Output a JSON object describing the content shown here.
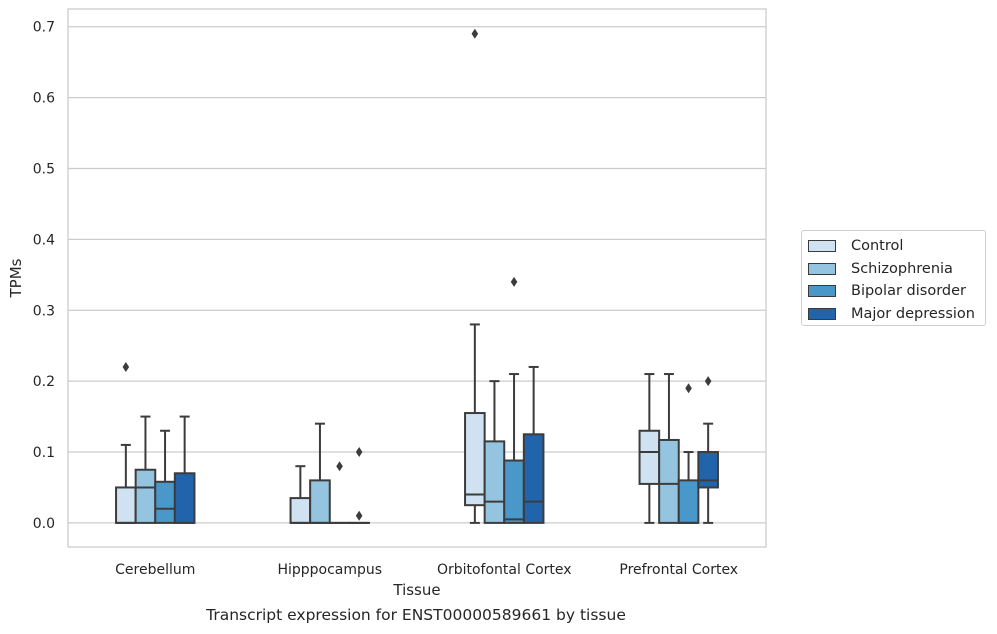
{
  "caption": "Transcript expression for ENST00000589661 by tissue",
  "chart_data": {
    "type": "box",
    "title": "",
    "xlabel": "Tissue",
    "ylabel": "TPMs",
    "ylim": [
      -0.034,
      0.725
    ],
    "yticks": [
      0.0,
      0.1,
      0.2,
      0.3,
      0.4,
      0.5,
      0.6,
      0.7
    ],
    "ytick_labels": [
      "0.0",
      "0.1",
      "0.2",
      "0.3",
      "0.4",
      "0.5",
      "0.6",
      "0.7"
    ],
    "grid": "horizontal",
    "legend_position": "right",
    "categories": [
      "Cerebellum",
      "Hipppocampus",
      "Orbitofontal Cortex",
      "Prefrontal Cortex"
    ],
    "series": [
      {
        "name": "Control",
        "color": "#d0e1f2",
        "boxes": [
          {
            "whislo": 0.0,
            "q1": 0.0,
            "med": 0.0,
            "q3": 0.05,
            "whishi": 0.11,
            "fliers": [
              0.22
            ]
          },
          {
            "whislo": 0.0,
            "q1": 0.0,
            "med": 0.0,
            "q3": 0.035,
            "whishi": 0.08,
            "fliers": []
          },
          {
            "whislo": 0.0,
            "q1": 0.025,
            "med": 0.04,
            "q3": 0.155,
            "whishi": 0.28,
            "fliers": [
              0.69
            ]
          },
          {
            "whislo": 0.0,
            "q1": 0.055,
            "med": 0.1,
            "q3": 0.13,
            "whishi": 0.21,
            "fliers": []
          }
        ]
      },
      {
        "name": "Schizophrenia",
        "color": "#94c4df",
        "boxes": [
          {
            "whislo": 0.0,
            "q1": 0.0,
            "med": 0.05,
            "q3": 0.075,
            "whishi": 0.15,
            "fliers": []
          },
          {
            "whislo": 0.0,
            "q1": 0.0,
            "med": 0.0,
            "q3": 0.06,
            "whishi": 0.14,
            "fliers": []
          },
          {
            "whislo": 0.0,
            "q1": 0.0,
            "med": 0.03,
            "q3": 0.115,
            "whishi": 0.2,
            "fliers": []
          },
          {
            "whislo": 0.0,
            "q1": 0.0,
            "med": 0.055,
            "q3": 0.117,
            "whishi": 0.21,
            "fliers": []
          }
        ]
      },
      {
        "name": "Bipolar disorder",
        "color": "#4a98c9",
        "boxes": [
          {
            "whislo": 0.0,
            "q1": 0.0,
            "med": 0.02,
            "q3": 0.058,
            "whishi": 0.13,
            "fliers": []
          },
          {
            "whislo": 0.0,
            "q1": 0.0,
            "med": 0.0,
            "q3": 0.0,
            "whishi": 0.0,
            "fliers": [
              0.08
            ]
          },
          {
            "whislo": 0.0,
            "q1": 0.0,
            "med": 0.005,
            "q3": 0.088,
            "whishi": 0.21,
            "fliers": [
              0.34
            ]
          },
          {
            "whislo": 0.0,
            "q1": 0.0,
            "med": 0.0,
            "q3": 0.06,
            "whishi": 0.1,
            "fliers": [
              0.19
            ]
          }
        ]
      },
      {
        "name": "Major depression",
        "color": "#2164ab",
        "boxes": [
          {
            "whislo": 0.0,
            "q1": 0.0,
            "med": 0.0,
            "q3": 0.07,
            "whishi": 0.15,
            "fliers": []
          },
          {
            "whislo": 0.0,
            "q1": 0.0,
            "med": 0.0,
            "q3": 0.0,
            "whishi": 0.0,
            "fliers": [
              0.1,
              0.01
            ]
          },
          {
            "whislo": 0.0,
            "q1": 0.0,
            "med": 0.03,
            "q3": 0.125,
            "whishi": 0.22,
            "fliers": []
          },
          {
            "whislo": 0.0,
            "q1": 0.05,
            "med": 0.06,
            "q3": 0.1,
            "whishi": 0.14,
            "fliers": [
              0.2
            ]
          }
        ]
      }
    ]
  }
}
